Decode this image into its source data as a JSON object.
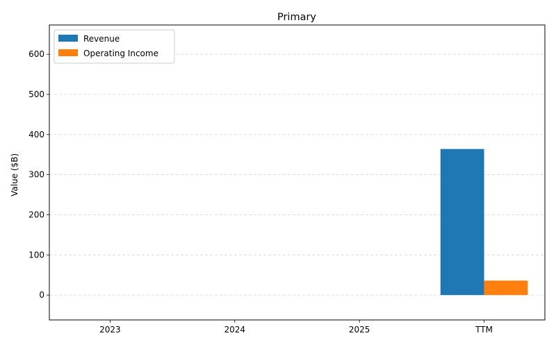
{
  "chart_data": {
    "type": "bar",
    "title": "Primary",
    "xlabel": "",
    "ylabel": "Value ($B)",
    "categories": [
      "2023",
      "2024",
      "2025",
      "TTM"
    ],
    "series": [
      {
        "name": "Revenue",
        "color": "#1f77b4",
        "values": [
          0,
          0,
          0,
          364
        ]
      },
      {
        "name": "Operating Income",
        "color": "#ff7f0e",
        "values": [
          0,
          0,
          0,
          36
        ]
      }
    ],
    "ylim": [
      -62,
      673
    ],
    "yticks": [
      0,
      100,
      200,
      300,
      400,
      500,
      600
    ],
    "grid": "y-dashed",
    "legend_position": "top-left"
  }
}
